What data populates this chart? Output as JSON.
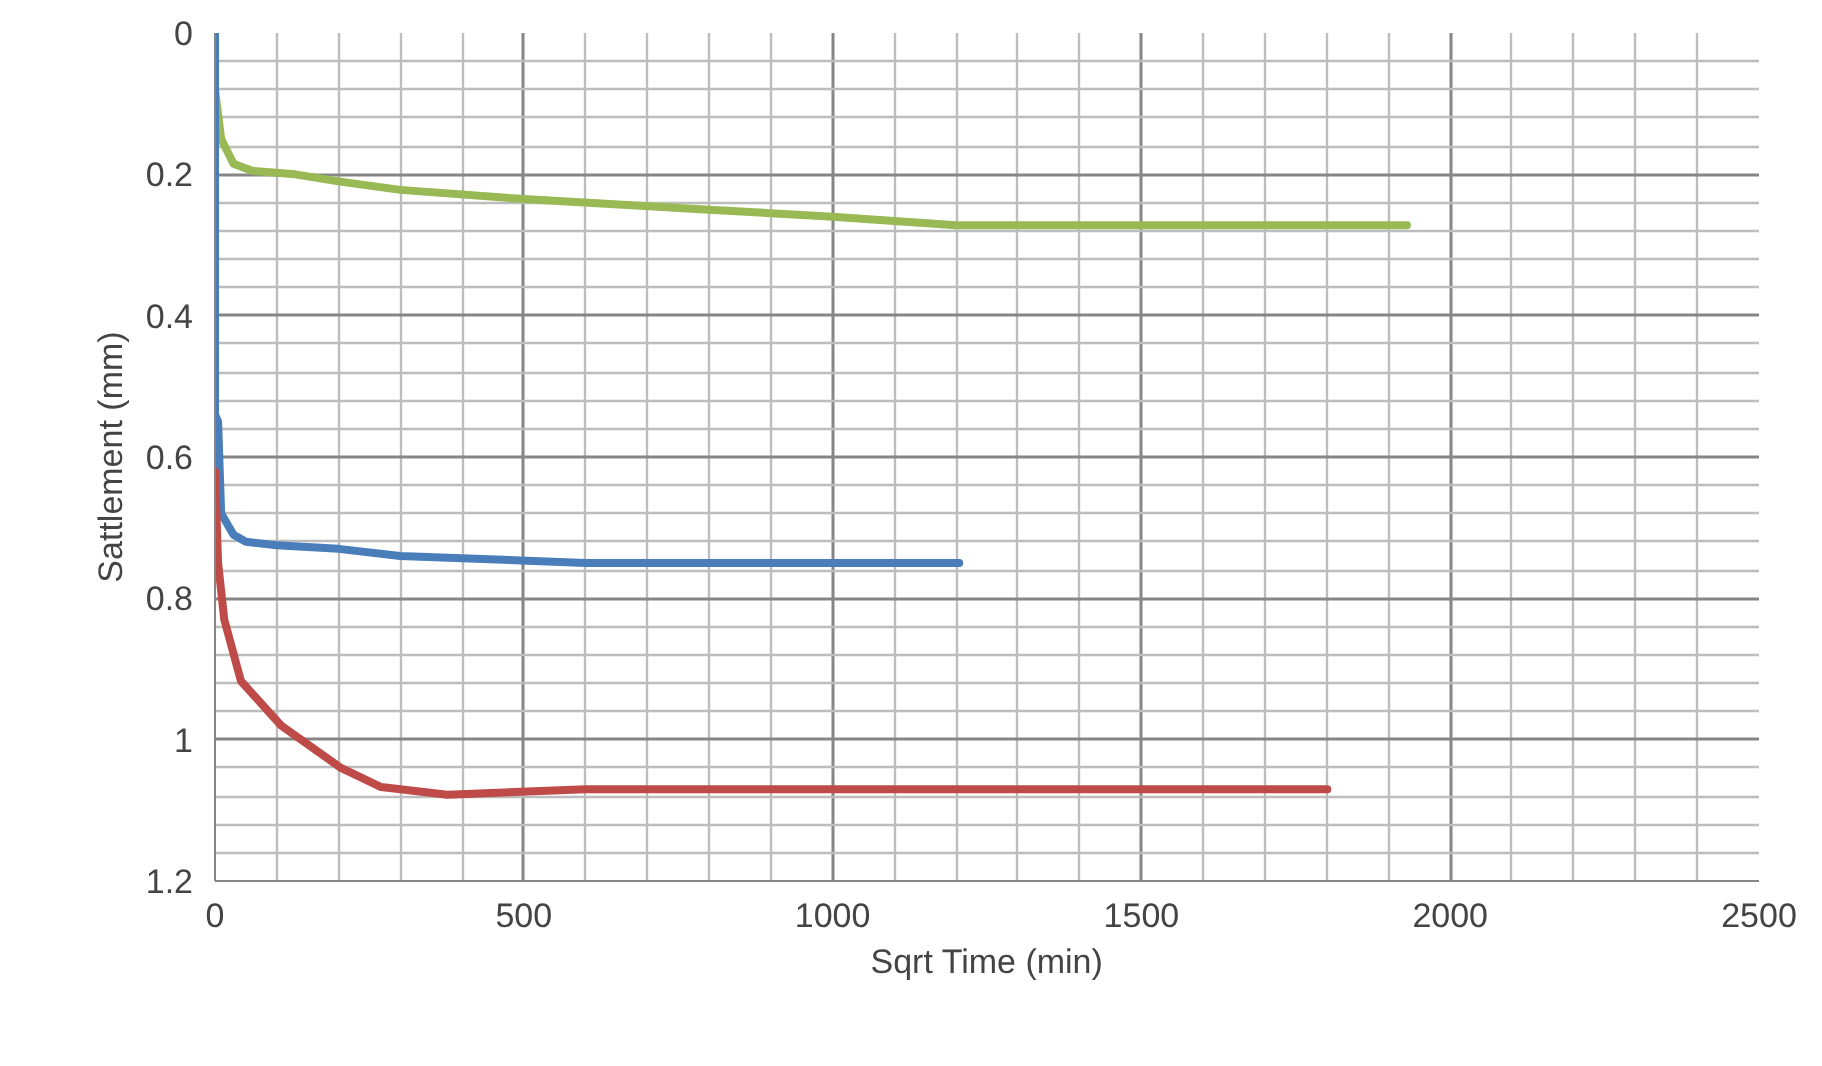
{
  "chart_data": {
    "type": "line",
    "xlabel": "Sqrt Time (min)",
    "ylabel": "Sattlement (mm)",
    "xlim": [
      0,
      2500
    ],
    "xticks": [
      0,
      500,
      1000,
      1500,
      2000,
      2500
    ],
    "ylim": [
      1.2,
      0
    ],
    "yticks": [
      0,
      0.2,
      0.4,
      0.6,
      0.8,
      1,
      1.2
    ],
    "grid": true,
    "line_style": "solid",
    "marker": "none",
    "series": [
      {
        "color": "#98b954",
        "x": [
          0,
          10,
          30,
          60,
          130,
          200,
          300,
          500,
          800,
          1000,
          1200,
          1930
        ],
        "values": [
          0.08,
          0.15,
          0.185,
          0.195,
          0.2,
          0.21,
          0.222,
          0.235,
          0.25,
          0.26,
          0.272,
          0.272
        ]
      },
      {
        "color": "#4a7ebb",
        "x": [
          0,
          0,
          5,
          10,
          30,
          50,
          100,
          200,
          300,
          600,
          1205
        ],
        "values": [
          0,
          0.54,
          0.55,
          0.68,
          0.71,
          0.72,
          0.725,
          0.73,
          0.74,
          0.75,
          0.75
        ]
      },
      {
        "color": "#be4b48",
        "x": [
          0,
          5,
          15,
          42,
          107,
          204,
          269,
          376,
          600,
          1801
        ],
        "values": [
          0.62,
          0.75,
          0.83,
          0.917,
          0.98,
          1.04,
          1.067,
          1.078,
          1.07,
          1.07
        ]
      }
    ]
  }
}
